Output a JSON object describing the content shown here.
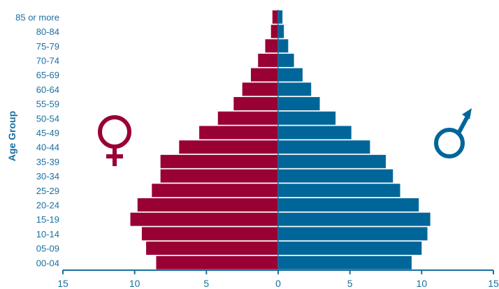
{
  "chart_data": {
    "type": "bar",
    "subtype": "population-pyramid",
    "ylabel": "Age Group",
    "xlabel": "",
    "xlim": [
      -15,
      15
    ],
    "x_ticks": [
      -15,
      -10,
      -5,
      0,
      5,
      10,
      15
    ],
    "x_tick_labels": [
      "15",
      "10",
      "5",
      "0",
      "5",
      "10",
      "15"
    ],
    "categories": [
      "00-04",
      "05-09",
      "10-14",
      "15-19",
      "20-24",
      "25-29",
      "30-34",
      "35-39",
      "40-44",
      "45-49",
      "50-54",
      "55-59",
      "60-64",
      "65-69",
      "70-74",
      "75-79",
      "80-84",
      "85 or more"
    ],
    "series": [
      {
        "key": "female",
        "side": "left",
        "color": "#990033",
        "icon": "female-symbol-icon",
        "values": [
          8.5,
          9.2,
          9.5,
          10.3,
          9.8,
          8.8,
          8.2,
          8.2,
          6.9,
          5.5,
          4.2,
          3.1,
          2.5,
          1.9,
          1.4,
          0.9,
          0.5,
          0.4
        ]
      },
      {
        "key": "male",
        "side": "right",
        "color": "#006699",
        "icon": "male-symbol-icon",
        "values": [
          9.3,
          10.0,
          10.4,
          10.6,
          9.8,
          8.5,
          8.0,
          7.5,
          6.4,
          5.1,
          4.0,
          2.9,
          2.3,
          1.7,
          1.1,
          0.7,
          0.4,
          0.3
        ]
      }
    ],
    "grid": false,
    "legend": "symbols"
  }
}
